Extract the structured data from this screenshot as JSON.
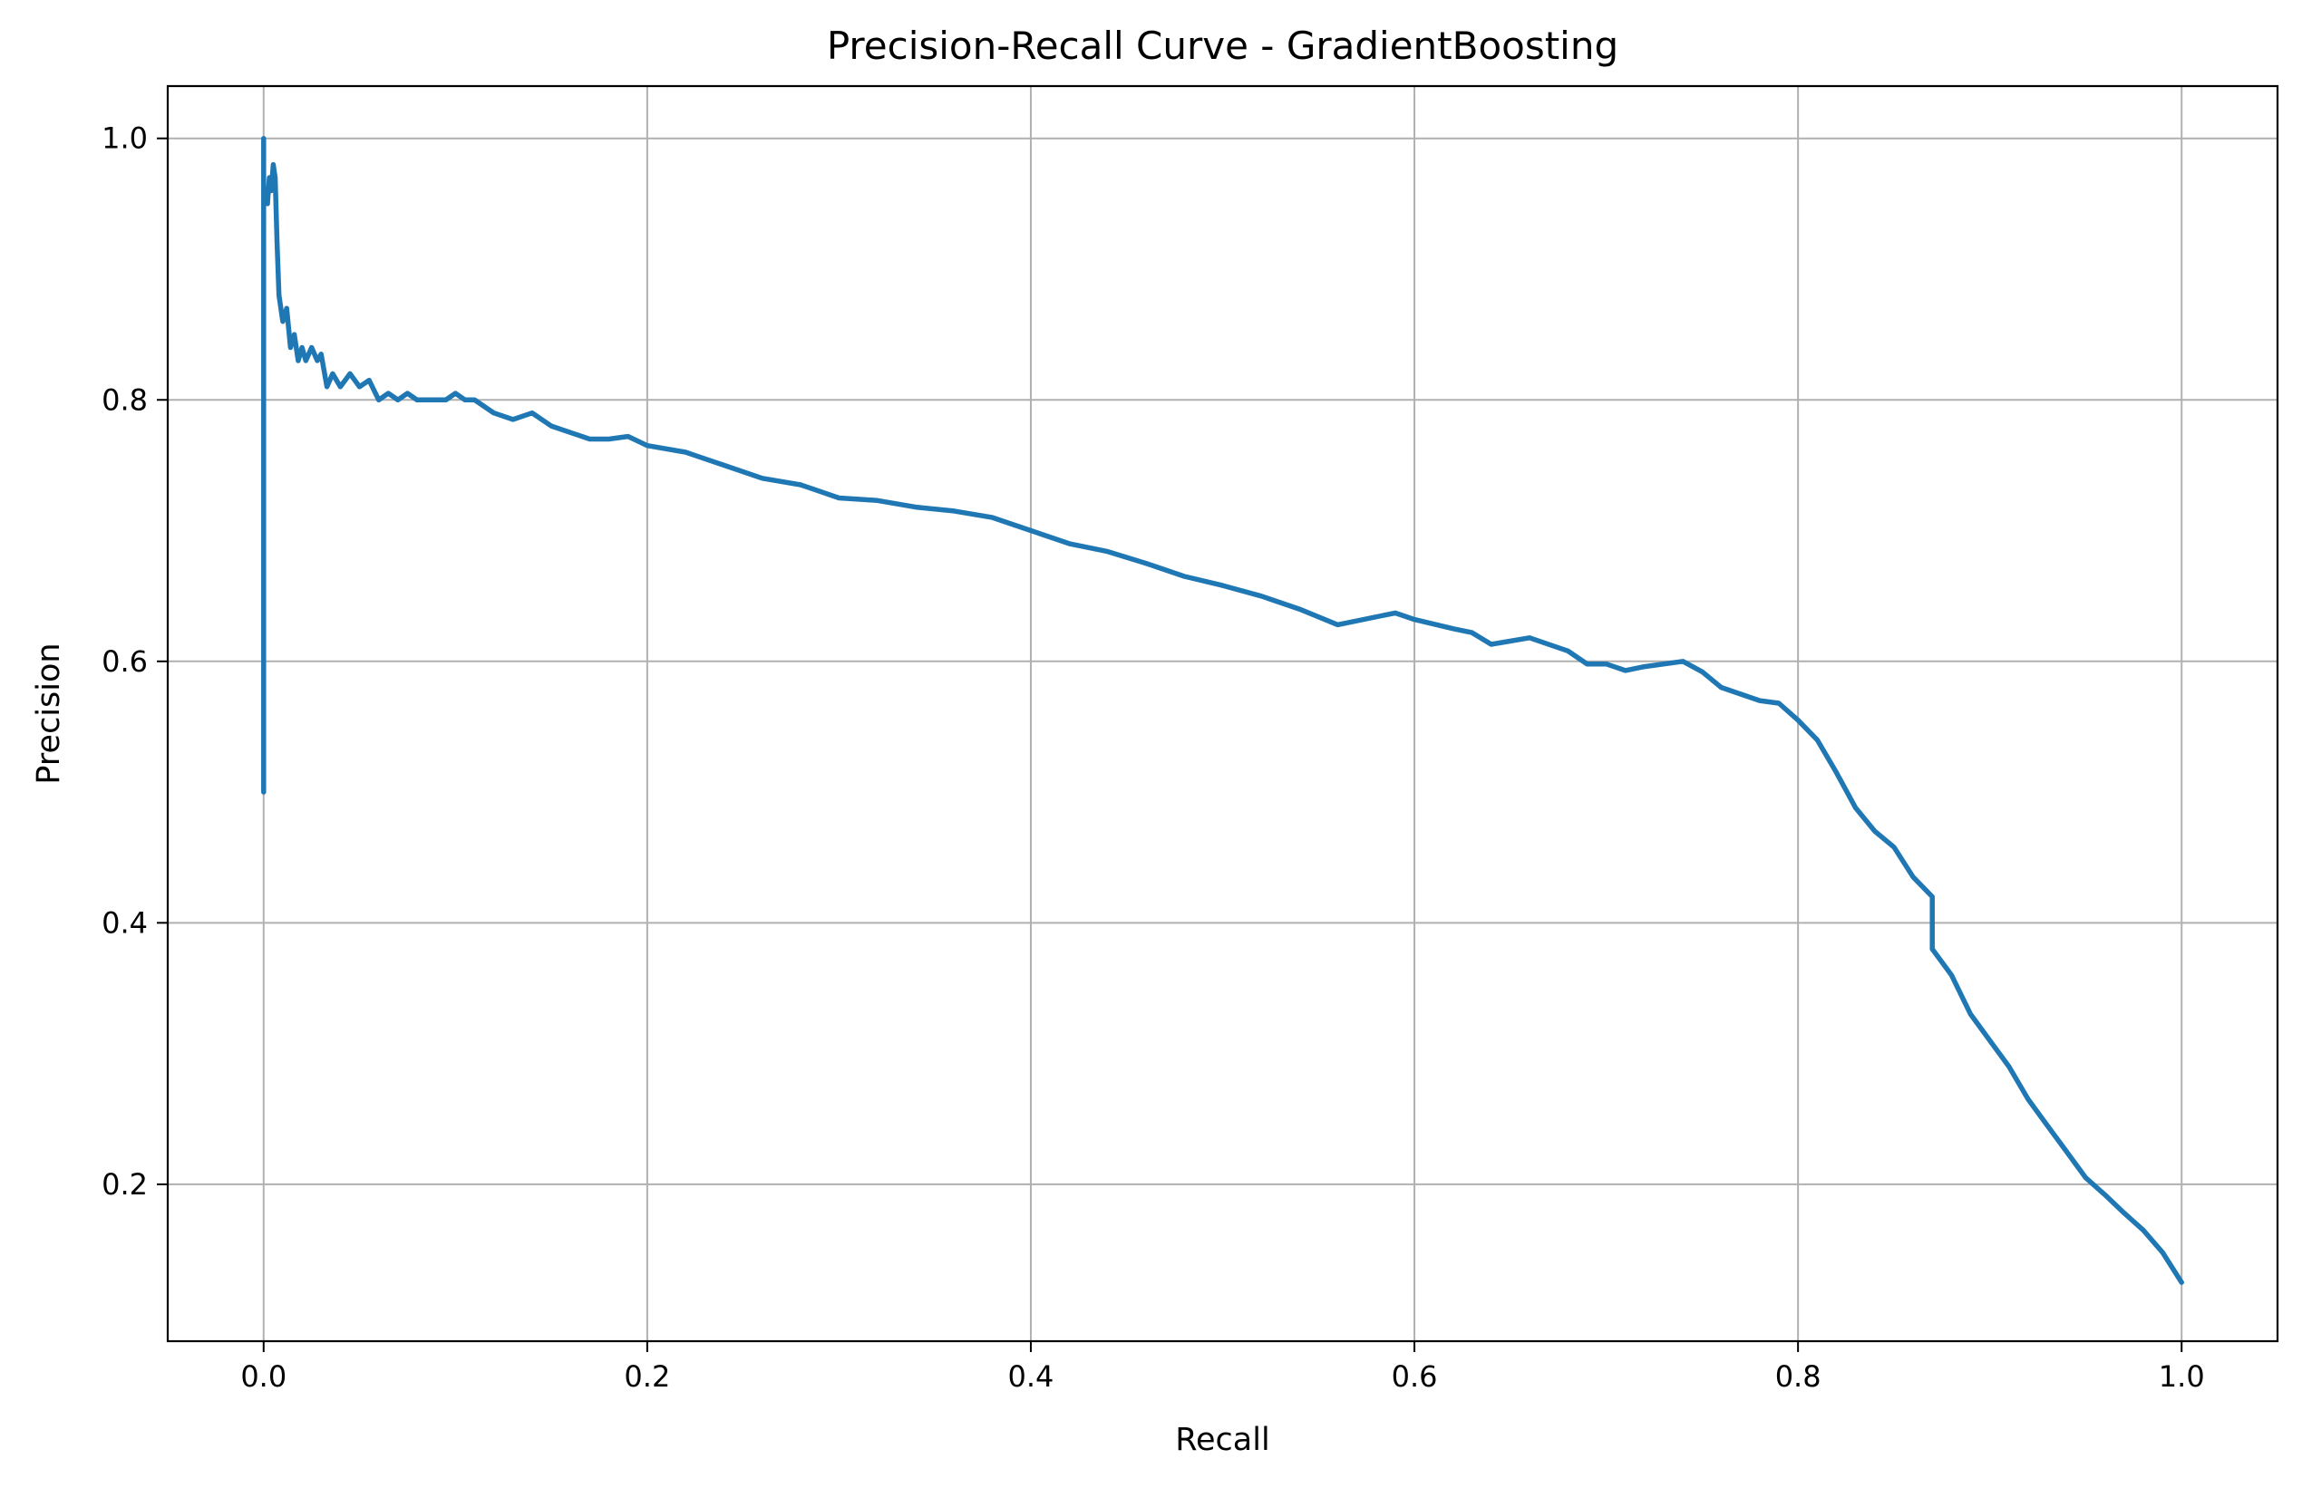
{
  "chart_data": {
    "type": "line",
    "title": "Precision-Recall Curve - GradientBoosting",
    "xlabel": "Recall",
    "ylabel": "Precision",
    "xlim": [
      -0.05,
      1.05
    ],
    "ylim": [
      0.08,
      1.04
    ],
    "grid": true,
    "x_ticks": [
      0.0,
      0.2,
      0.4,
      0.6,
      0.8,
      1.0
    ],
    "x_tick_labels": [
      "0.0",
      "0.2",
      "0.4",
      "0.6",
      "0.8",
      "1.0"
    ],
    "y_ticks": [
      0.2,
      0.4,
      0.6,
      0.8,
      1.0
    ],
    "y_tick_labels": [
      "0.2",
      "0.4",
      "0.6",
      "0.8",
      "1.0"
    ],
    "line_color": "#1f77b4",
    "series": [
      {
        "x": [
          0.0,
          0.0,
          0.0,
          0.001,
          0.002,
          0.003,
          0.004,
          0.005,
          0.006,
          0.007,
          0.008,
          0.009,
          0.01,
          0.012,
          0.014,
          0.016,
          0.018,
          0.02,
          0.022,
          0.025,
          0.028,
          0.03,
          0.033,
          0.036,
          0.04,
          0.045,
          0.05,
          0.055,
          0.06,
          0.065,
          0.07,
          0.075,
          0.08,
          0.085,
          0.09,
          0.095,
          0.1,
          0.105,
          0.11,
          0.12,
          0.13,
          0.14,
          0.15,
          0.16,
          0.17,
          0.18,
          0.19,
          0.2,
          0.22,
          0.24,
          0.26,
          0.28,
          0.3,
          0.32,
          0.34,
          0.36,
          0.38,
          0.4,
          0.42,
          0.44,
          0.46,
          0.48,
          0.5,
          0.52,
          0.54,
          0.56,
          0.59,
          0.6,
          0.62,
          0.63,
          0.64,
          0.66,
          0.68,
          0.69,
          0.7,
          0.71,
          0.72,
          0.74,
          0.75,
          0.76,
          0.77,
          0.78,
          0.79,
          0.8,
          0.81,
          0.82,
          0.83,
          0.84,
          0.85,
          0.86,
          0.87,
          0.87,
          0.88,
          0.89,
          0.9,
          0.91,
          0.92,
          0.93,
          0.94,
          0.95,
          0.96,
          0.97,
          0.98,
          0.99,
          1.0
        ],
        "y": [
          1.0,
          0.5,
          0.95,
          0.96,
          0.95,
          0.97,
          0.96,
          0.98,
          0.97,
          0.92,
          0.88,
          0.87,
          0.86,
          0.87,
          0.84,
          0.85,
          0.83,
          0.84,
          0.83,
          0.84,
          0.83,
          0.835,
          0.81,
          0.82,
          0.81,
          0.82,
          0.81,
          0.815,
          0.8,
          0.805,
          0.8,
          0.805,
          0.8,
          0.8,
          0.8,
          0.8,
          0.805,
          0.8,
          0.8,
          0.79,
          0.785,
          0.79,
          0.78,
          0.775,
          0.77,
          0.77,
          0.772,
          0.765,
          0.76,
          0.75,
          0.74,
          0.735,
          0.725,
          0.723,
          0.718,
          0.715,
          0.71,
          0.7,
          0.69,
          0.684,
          0.675,
          0.665,
          0.658,
          0.65,
          0.64,
          0.628,
          0.637,
          0.632,
          0.625,
          0.622,
          0.613,
          0.618,
          0.608,
          0.598,
          0.598,
          0.593,
          0.596,
          0.6,
          0.592,
          0.58,
          0.575,
          0.57,
          0.568,
          0.555,
          0.54,
          0.515,
          0.488,
          0.47,
          0.458,
          0.435,
          0.42,
          0.38,
          0.36,
          0.33,
          0.31,
          0.29,
          0.265,
          0.245,
          0.225,
          0.205,
          0.192,
          0.178,
          0.165,
          0.148,
          0.125
        ]
      }
    ]
  }
}
